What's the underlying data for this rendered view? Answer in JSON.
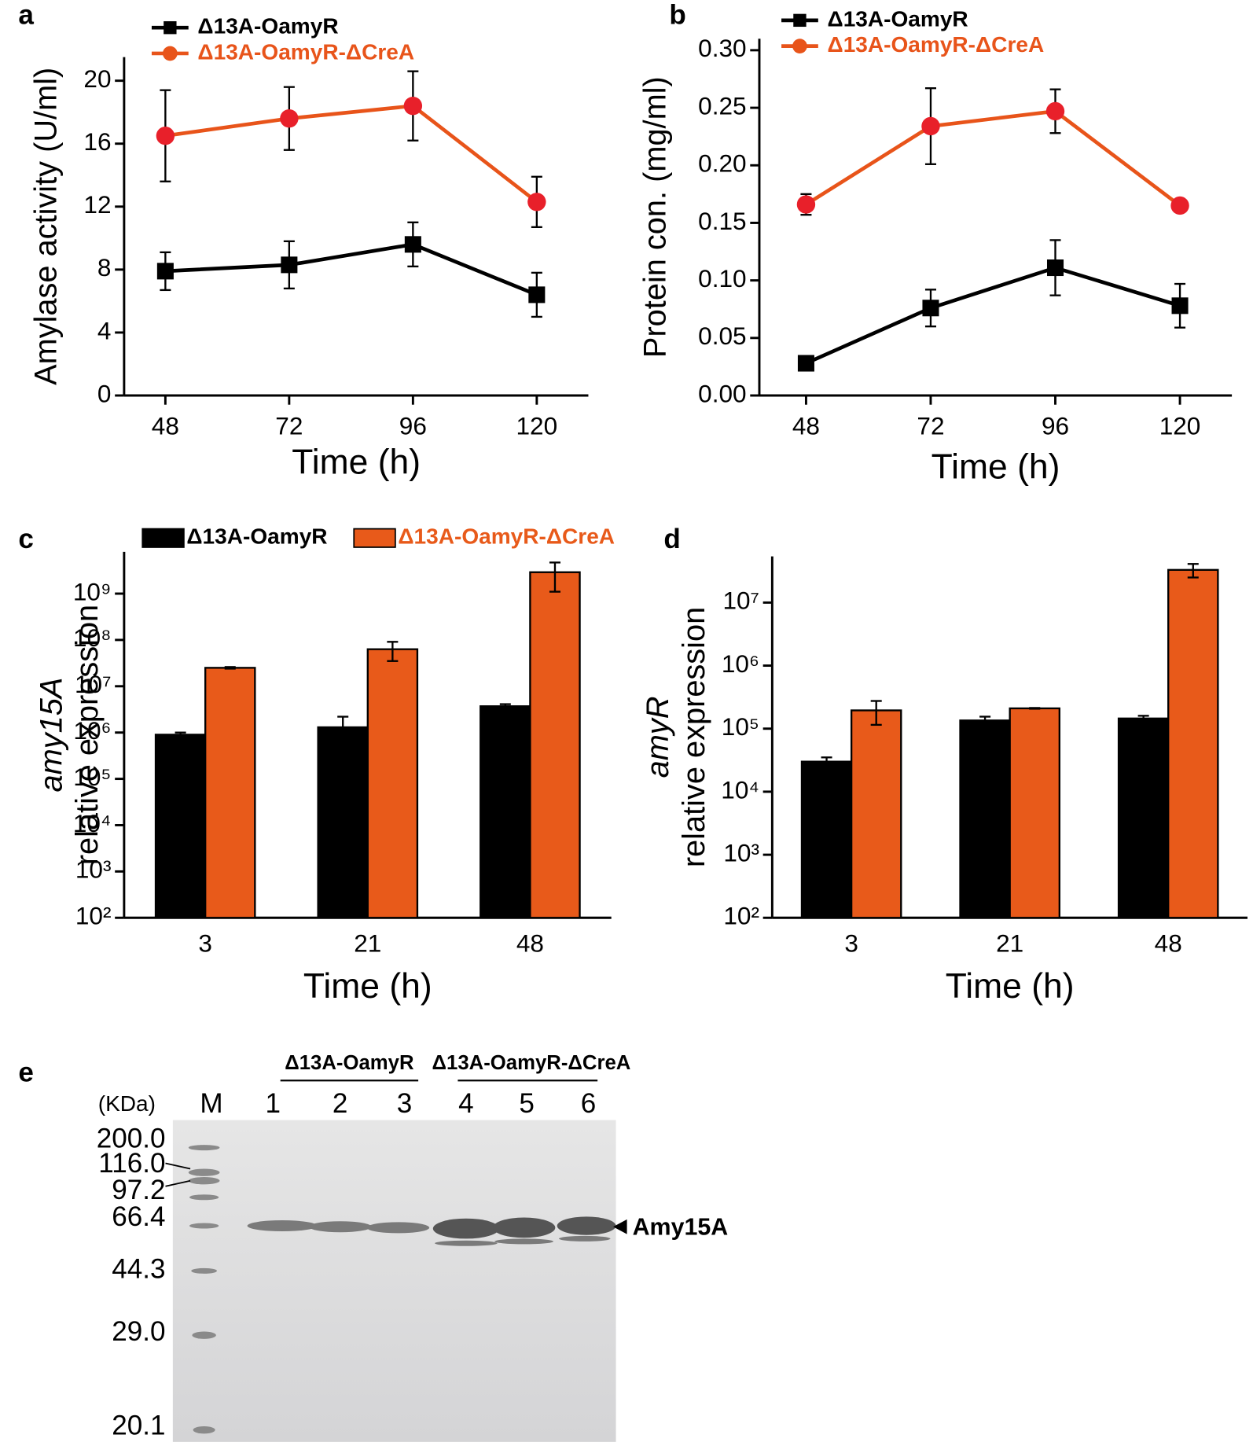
{
  "chart_data": [
    {
      "type": "line",
      "panel": "a",
      "xlabel": "Time (h)",
      "ylabel": "Amylase activity (U/ml)",
      "x": [
        48,
        72,
        96,
        120
      ],
      "xlim": [
        40,
        130
      ],
      "xticks": [
        48,
        72,
        96,
        120
      ],
      "ylim": [
        0,
        21.5
      ],
      "yticks": [
        0,
        4,
        8,
        12,
        16,
        20
      ],
      "legend": "top-left",
      "series": [
        {
          "name": "Δ13A-OamyR",
          "color": "#000000",
          "marker": "square",
          "marker_color": "#000000",
          "values": [
            7.9,
            8.3,
            9.6,
            6.4
          ],
          "errors": [
            1.2,
            1.5,
            1.4,
            1.4
          ]
        },
        {
          "name": "Δ13A-OamyR-ΔCreA",
          "color": "#e8541a",
          "marker": "circle",
          "marker_color": "#e8202a",
          "values": [
            16.5,
            17.6,
            18.4,
            12.3
          ],
          "errors": [
            2.9,
            2.0,
            2.2,
            1.6
          ]
        }
      ]
    },
    {
      "type": "line",
      "panel": "b",
      "xlabel": "Time (h)",
      "ylabel": "Protein con. (mg/ml)",
      "x": [
        48,
        72,
        96,
        120
      ],
      "xlim": [
        39,
        130
      ],
      "xticks": [
        48,
        72,
        96,
        120
      ],
      "ylim": [
        0,
        0.31
      ],
      "yticks": [
        {
          "value": 0,
          "label": "0.00"
        },
        {
          "value": 0.05,
          "label": "0.05"
        },
        {
          "value": 0.1,
          "label": "0.10"
        },
        {
          "value": 0.15,
          "label": "0.15"
        },
        {
          "value": 0.2,
          "label": "0.20"
        },
        {
          "value": 0.25,
          "label": "0.25"
        },
        {
          "value": 0.3,
          "label": "0.30"
        }
      ],
      "legend": "top-left",
      "series": [
        {
          "name": "Δ13A-OamyR",
          "color": "#000000",
          "marker": "square",
          "marker_color": "#000000",
          "values": [
            0.028,
            0.076,
            0.111,
            0.078
          ],
          "errors": [
            0.003,
            0.016,
            0.024,
            0.019
          ]
        },
        {
          "name": "Δ13A-OamyR-ΔCreA",
          "color": "#e8541a",
          "marker": "circle",
          "marker_color": "#e8202a",
          "values": [
            0.166,
            0.234,
            0.247,
            0.165
          ],
          "errors": [
            0.009,
            0.033,
            0.019,
            0.003
          ]
        }
      ]
    },
    {
      "type": "bar",
      "panel": "c",
      "xlabel": "Time (h)",
      "ylabel_gene": "amy15A",
      "ylabel": "relative expression",
      "categories": [
        "3",
        "21",
        "48"
      ],
      "log_scale": true,
      "ylim": [
        100,
        8000000000
      ],
      "yticks": [
        {
          "value": 100,
          "label": "10²"
        },
        {
          "value": 1000,
          "label": "10³"
        },
        {
          "value": 10000,
          "label": "10⁴"
        },
        {
          "value": 100000,
          "label": "10⁵"
        },
        {
          "value": 1000000,
          "label": "10⁶"
        },
        {
          "value": 10000000,
          "label": "10⁷"
        },
        {
          "value": 100000000,
          "label": "10⁸"
        },
        {
          "value": 1000000000,
          "label": "10⁹"
        }
      ],
      "legend": "top",
      "series": [
        {
          "name": "Δ13A-OamyR",
          "color": "#000000",
          "values": [
            900000,
            1300000,
            3700000
          ],
          "errors": [
            100000,
            900000,
            400000
          ]
        },
        {
          "name": "Δ13A-OamyR-ΔCreA",
          "color": "#e85a1a",
          "values": [
            25000000,
            63000000,
            2900000000
          ],
          "errors": [
            1000000,
            28000000,
            1800000000
          ]
        }
      ]
    },
    {
      "type": "bar",
      "panel": "d",
      "xlabel": "Time (h)",
      "ylabel_gene": "amyR",
      "ylabel": "relative expression",
      "categories": [
        "3",
        "21",
        "48"
      ],
      "log_scale": true,
      "ylim": [
        100,
        54000000
      ],
      "yticks": [
        {
          "value": 100,
          "label": "10²"
        },
        {
          "value": 1000,
          "label": "10³"
        },
        {
          "value": 10000,
          "label": "10⁴"
        },
        {
          "value": 100000,
          "label": "10⁵"
        },
        {
          "value": 1000000,
          "label": "10⁶"
        },
        {
          "value": 10000000,
          "label": "10⁷"
        }
      ],
      "legend": "none",
      "series": [
        {
          "name": "Δ13A-OamyR",
          "color": "#000000",
          "values": [
            30000,
            135000,
            145000
          ],
          "errors": [
            5000,
            20000,
            15000
          ]
        },
        {
          "name": "Δ13A-OamyR-ΔCreA",
          "color": "#e85a1a",
          "values": [
            195000,
            210000,
            33000000
          ],
          "errors": [
            80000,
            3000,
            8000000
          ]
        }
      ]
    }
  ],
  "gel": {
    "panel": "e",
    "unit": "(KDa)",
    "marker_lane": "M",
    "lanes": [
      "1",
      "2",
      "3",
      "4",
      "5",
      "6"
    ],
    "groups": [
      "Δ13A-OamyR",
      "Δ13A-OamyR-ΔCreA"
    ],
    "marker_sizes": [
      "200.0",
      "116.0",
      "97.2",
      "66.4",
      "44.3",
      "29.0",
      "20.1"
    ],
    "band_label": "Amy15A"
  }
}
